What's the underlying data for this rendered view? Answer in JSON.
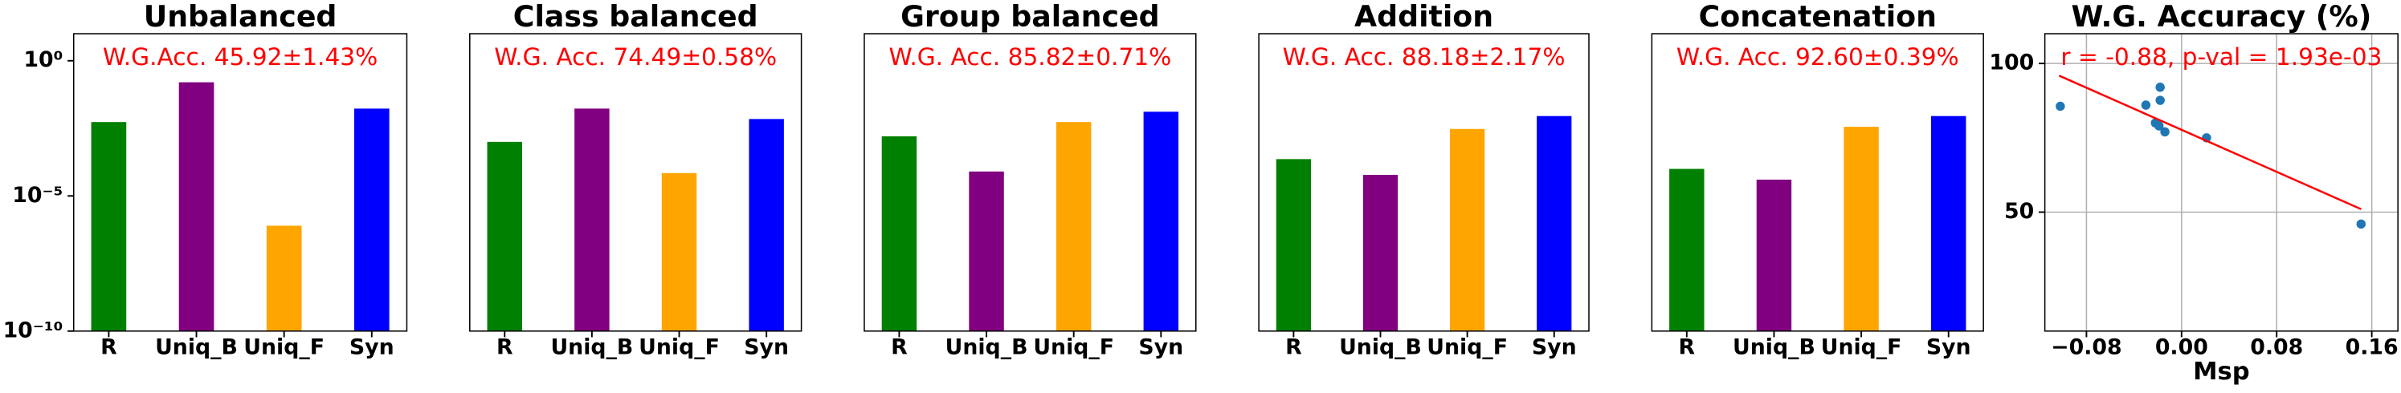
{
  "chart_data": [
    {
      "type": "bar",
      "title": "Unbalanced",
      "annotation": "W.G.Acc. 45.92±1.43%",
      "annotation_color": "#ff0000",
      "categories": [
        "R",
        "Uniq_B",
        "Uniq_F",
        "Syn"
      ],
      "values": [
        0.0054,
        0.16,
        7.9e-07,
        0.017
      ],
      "colors": [
        "#008000",
        "#800080",
        "#ffa500",
        "#0000ff"
      ],
      "log_scale": true,
      "ylim": [
        1e-10,
        10
      ],
      "yticks": [
        {
          "value": 1,
          "label": "10⁰"
        },
        {
          "value": 1e-05,
          "label": "10⁻⁵"
        },
        {
          "value": 1e-10,
          "label": "10⁻¹⁰"
        }
      ]
    },
    {
      "type": "bar",
      "title": "Class balanced",
      "annotation": "W.G. Acc. 74.49±0.58%",
      "annotation_color": "#ff0000",
      "categories": [
        "R",
        "Uniq_B",
        "Uniq_F",
        "Syn"
      ],
      "values": [
        0.001,
        0.017,
        7e-05,
        0.007
      ],
      "colors": [
        "#008000",
        "#800080",
        "#ffa500",
        "#0000ff"
      ],
      "log_scale": true,
      "ylim": [
        1e-10,
        10
      ]
    },
    {
      "type": "bar",
      "title": "Group balanced",
      "annotation": "W.G. Acc. 85.82±0.71%",
      "annotation_color": "#ff0000",
      "categories": [
        "R",
        "Uniq_B",
        "Uniq_F",
        "Syn"
      ],
      "values": [
        0.0016,
        8e-05,
        0.0054,
        0.013
      ],
      "colors": [
        "#008000",
        "#800080",
        "#ffa500",
        "#0000ff"
      ],
      "log_scale": true,
      "ylim": [
        1e-10,
        10
      ]
    },
    {
      "type": "bar",
      "title": "Addition",
      "annotation": "W.G. Acc. 88.18±2.17%",
      "annotation_color": "#ff0000",
      "categories": [
        "R",
        "Uniq_B",
        "Uniq_F",
        "Syn"
      ],
      "values": [
        0.00023,
        6e-05,
        0.003,
        0.009
      ],
      "colors": [
        "#008000",
        "#800080",
        "#ffa500",
        "#0000ff"
      ],
      "log_scale": true,
      "ylim": [
        1e-10,
        10
      ]
    },
    {
      "type": "bar",
      "title": "Concatenation",
      "annotation": "W.G. Acc. 92.60±0.39%",
      "annotation_color": "#ff0000",
      "categories": [
        "R",
        "Uniq_B",
        "Uniq_F",
        "Syn"
      ],
      "values": [
        0.0001,
        4e-05,
        0.0036,
        0.009
      ],
      "colors": [
        "#008000",
        "#800080",
        "#ffa500",
        "#0000ff"
      ],
      "log_scale": true,
      "ylim": [
        1e-10,
        10
      ]
    },
    {
      "type": "scatter",
      "title": "W.G. Accuracy (%)",
      "annotation": "r = -0.88, p-val = 1.93e-03",
      "annotation_color": "#ff0000",
      "x_label": "Msp",
      "grid": true,
      "point_color": "#1f77b4",
      "line_color": "#ff0000",
      "x": [
        -0.102,
        -0.03,
        -0.018,
        -0.018,
        -0.022,
        -0.019,
        -0.014,
        0.021,
        0.151
      ],
      "values": [
        85.6,
        86,
        92,
        87.6,
        80,
        79,
        77,
        75,
        46
      ],
      "fit_x": [
        -0.103,
        0.151
      ],
      "fit_values": [
        95.9,
        51.0
      ],
      "xlim": [
        -0.115,
        0.182
      ],
      "ylim": [
        10,
        110
      ],
      "xticks": [
        {
          "value": -0.08,
          "label": "−0.08"
        },
        {
          "value": 0,
          "label": "0.00"
        },
        {
          "value": 0.08,
          "label": "0.08"
        },
        {
          "value": 0.16,
          "label": "0.16"
        }
      ],
      "yticks": [
        50,
        100
      ]
    }
  ]
}
